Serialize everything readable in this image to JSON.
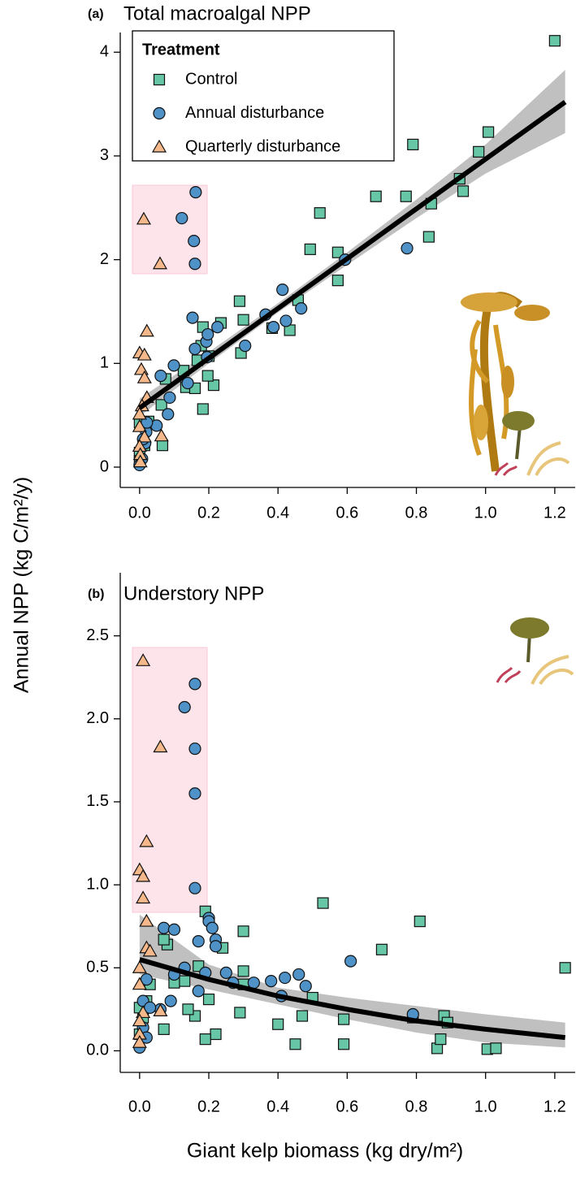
{
  "chart_data": [
    {
      "type": "scatter",
      "panel_label": "(a)",
      "title": "Total macroalgal NPP",
      "ylabel": "Annual NPP (kg C/m²/y)",
      "legend_title": "Treatment",
      "legend": "top-left",
      "xlim": [
        -0.056,
        1.259
      ],
      "ylim": [
        -0.196,
        4.19
      ],
      "xticks": [
        {
          "value": 0,
          "label": "0.0"
        },
        0.2,
        0.4,
        0.6,
        0.8,
        {
          "value": 1,
          "label": "1.0"
        },
        1.2
      ],
      "yticks": [
        0,
        1,
        2,
        3,
        4
      ],
      "series": [
        {
          "name": "Control",
          "color": "#66c6a6",
          "marker": "square",
          "x": [
            1.2,
            1.008,
            0.98,
            0.79,
            0.925,
            0.935,
            0.843,
            0.77,
            0.683,
            0.836,
            0.521,
            0.493,
            0.573,
            0.573,
            0.458,
            0.434,
            0.383,
            0.289,
            0.3,
            0.293,
            0.235,
            0.183,
            0.178,
            0.2,
            0.167,
            0.127,
            0.134,
            0.16,
            0.214,
            0.183,
            0.197,
            0.075,
            0.063,
            0.066,
            0.026,
            0.014,
            0,
            0,
            0
          ],
          "values": [
            4.11,
            3.23,
            3.04,
            3.11,
            2.78,
            2.66,
            2.54,
            2.61,
            2.61,
            2.22,
            2.45,
            2.1,
            2.07,
            1.8,
            1.61,
            1.32,
            1.34,
            1.6,
            1.42,
            1.1,
            1.39,
            1.35,
            1.17,
            1.07,
            1.03,
            0.93,
            0.77,
            0.76,
            0.79,
            0.56,
            0.88,
            0.85,
            0.6,
            0.21,
            0.44,
            0.21,
            0.43,
            0.14,
            0.06
          ]
        },
        {
          "name": "Annual disturbance",
          "color": "#4e92c8",
          "marker": "circle",
          "x": [
            0.162,
            0.122,
            0.157,
            0.16,
            0.773,
            0.594,
            0.413,
            0.153,
            0.225,
            0.193,
            0.16,
            0.305,
            0.364,
            0.467,
            0.423,
            0.387,
            0.099,
            0.061,
            0.087,
            0.139,
            0.195,
            0.082,
            0.049,
            0.019,
            0.016,
            0.007,
            0,
            0.021,
            0.01,
            0.197
          ],
          "values": [
            2.65,
            2.4,
            2.18,
            1.96,
            2.11,
            2.0,
            1.71,
            1.44,
            1.35,
            1.21,
            1.14,
            1.17,
            1.47,
            1.53,
            1.41,
            1.35,
            0.98,
            0.88,
            0.67,
            0.81,
            1.06,
            0.51,
            0.4,
            0.34,
            0.23,
            0.08,
            0.02,
            0.43,
            0.27,
            1.28
          ]
        },
        {
          "name": "Quarterly disturbance",
          "color": "#f5b88a",
          "marker": "triangle",
          "x": [
            0.012,
            0.059,
            0.021,
            0,
            0.014,
            0.005,
            0.014,
            0.021,
            0.007,
            0,
            0,
            0.063,
            0.014,
            0,
            0.002,
            0.002
          ],
          "values": [
            2.39,
            1.96,
            1.31,
            1.1,
            1.08,
            0.94,
            0.86,
            0.67,
            0.59,
            0.51,
            0.39,
            0.3,
            0.29,
            0.2,
            0.12,
            0.05
          ]
        }
      ],
      "fit": {
        "x": [
          0,
          0.2,
          0.4,
          0.6,
          0.8,
          1.0,
          1.23
        ],
        "values": [
          0.57,
          1.05,
          1.53,
          2.01,
          2.49,
          2.97,
          3.52
        ],
        "lower": [
          0.49,
          1.0,
          1.49,
          1.95,
          2.4,
          2.83,
          3.22
        ],
        "upper": [
          0.66,
          1.11,
          1.58,
          2.07,
          2.58,
          3.11,
          3.83
        ]
      }
    },
    {
      "type": "scatter",
      "panel_label": "(b)",
      "title": "Understory NPP",
      "xlabel": "Giant kelp biomass (kg dry/m²)",
      "xlim": [
        -0.056,
        1.259
      ],
      "ylim": [
        -0.13,
        2.88
      ],
      "xticks": [
        {
          "value": 0,
          "label": "0.0"
        },
        0.2,
        0.4,
        0.6,
        0.8,
        {
          "value": 1,
          "label": "1.0"
        },
        1.2
      ],
      "yticks": [
        {
          "value": 0,
          "label": "0.0"
        },
        0.5,
        {
          "value": 1,
          "label": "1.0"
        },
        1.5,
        {
          "value": 2,
          "label": "2.0"
        },
        2.5
      ],
      "series": [
        {
          "name": "Control",
          "color": "#66c6a6",
          "marker": "square",
          "x": [
            1.23,
            1.005,
            1.03,
            0.81,
            0.79,
            0.86,
            0.87,
            0.88,
            0.89,
            0.7,
            0.53,
            0.5,
            0.59,
            0.59,
            0.47,
            0.45,
            0.4,
            0.3,
            0.3,
            0.3,
            0.29,
            0.24,
            0.22,
            0.19,
            0.2,
            0.19,
            0.17,
            0.16,
            0.14,
            0.13,
            0.08,
            0.07,
            0.07,
            0.1,
            0.03,
            0.02,
            0.01,
            0,
            0
          ],
          "values": [
            0.5,
            0.01,
            0.015,
            0.78,
            0.2,
            0.015,
            0.07,
            0.21,
            0.17,
            0.61,
            0.89,
            0.32,
            0.19,
            0.04,
            0.21,
            0.04,
            0.16,
            0.72,
            0.48,
            0.4,
            0.23,
            0.62,
            0.1,
            0.84,
            0.31,
            0.07,
            0.51,
            0.21,
            0.25,
            0.42,
            0.64,
            0.67,
            0.13,
            0.41,
            0.4,
            0.3,
            0.2,
            0.1,
            0.26
          ]
        },
        {
          "name": "Annual disturbance",
          "color": "#4e92c8",
          "marker": "circle",
          "x": [
            0.16,
            0.13,
            0.16,
            0.16,
            0.16,
            0.2,
            0.2,
            0.21,
            0.07,
            0.1,
            0.17,
            0.22,
            0.25,
            0.22,
            0.19,
            0.27,
            0.33,
            0.38,
            0.42,
            0.46,
            0.48,
            0.41,
            0.61,
            0.79,
            0.1,
            0.09,
            0.17,
            0.13,
            0.06,
            0.02,
            0.01,
            0,
            0.01,
            0.03,
            0.02
          ],
          "values": [
            2.21,
            2.07,
            1.82,
            1.55,
            0.98,
            0.8,
            0.78,
            0.74,
            0.74,
            0.73,
            0.66,
            0.67,
            0.47,
            0.63,
            0.47,
            0.41,
            0.41,
            0.42,
            0.44,
            0.46,
            0.39,
            0.33,
            0.54,
            0.22,
            0.46,
            0.3,
            0.36,
            0.5,
            0.25,
            0.43,
            0.14,
            0.02,
            0.3,
            0.26,
            0.08
          ]
        },
        {
          "name": "Quarterly disturbance",
          "color": "#f5b88a",
          "marker": "triangle",
          "x": [
            0.01,
            0.06,
            0.02,
            0,
            0.01,
            0.01,
            0.02,
            0.02,
            0.03,
            0,
            0,
            0.06,
            0.01,
            0,
            0,
            0
          ],
          "values": [
            2.35,
            1.83,
            1.26,
            1.09,
            1.05,
            0.92,
            0.78,
            0.62,
            0.6,
            0.5,
            0.4,
            0.24,
            0.23,
            0.18,
            0.1,
            0.05
          ]
        }
      ],
      "fit": {
        "x": [
          0,
          0.2,
          0.4,
          0.6,
          0.8,
          1.0,
          1.23
        ],
        "values": [
          0.55,
          0.43,
          0.33,
          0.25,
          0.18,
          0.13,
          0.08
        ],
        "lower": [
          0.46,
          0.37,
          0.28,
          0.19,
          0.11,
          0.05,
          0.02
        ],
        "upper": [
          0.82,
          0.52,
          0.38,
          0.32,
          0.27,
          0.22,
          0.17
        ]
      }
    }
  ]
}
